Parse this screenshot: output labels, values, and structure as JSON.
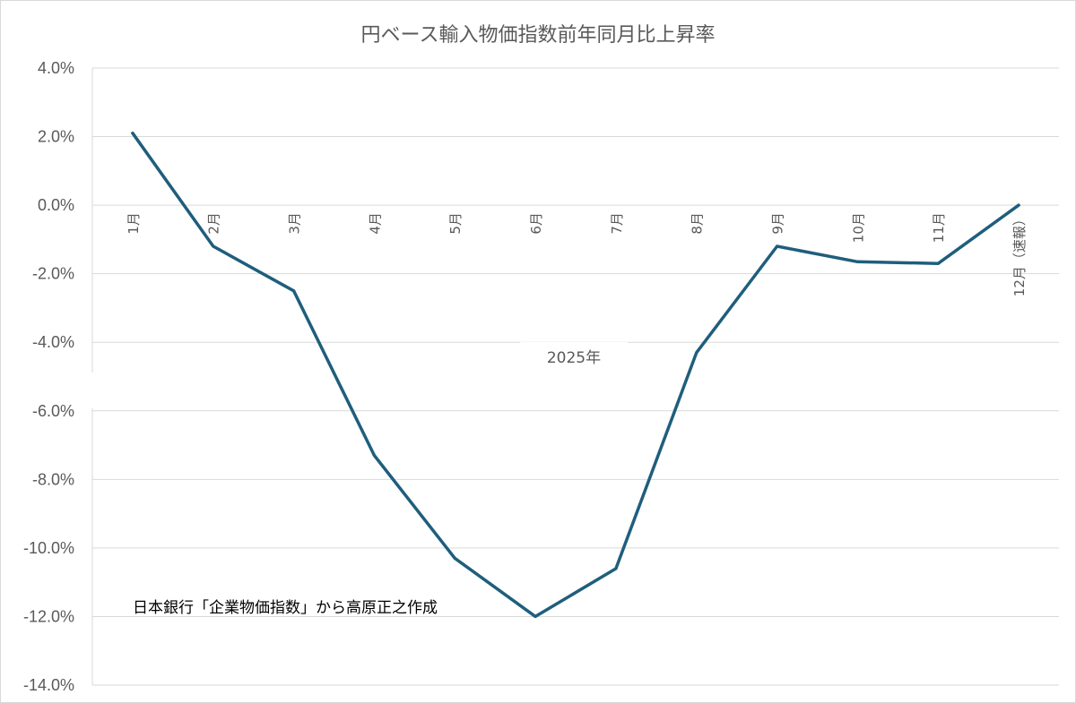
{
  "chart_data": {
    "type": "line",
    "title": "円ベース輸入物価指数前年同月比上昇率",
    "xlabel": "2025年",
    "ylabel": "",
    "categories": [
      "1月",
      "2月",
      "3月",
      "4月",
      "5月",
      "6月",
      "7月",
      "8月",
      "9月",
      "10月",
      "11月",
      "12月（速報）"
    ],
    "series": [
      {
        "values": [
          2.1,
          -1.2,
          -2.5,
          -7.3,
          -10.3,
          -12.0,
          -10.6,
          -4.3,
          -1.2,
          -1.65,
          -1.7,
          0.0
        ],
        "color": "#1f5e7c"
      }
    ],
    "ylim": [
      -14.0,
      4.0
    ],
    "yticks": [
      "4.0%",
      "2.0%",
      "0.0%",
      "-2.0%",
      "-4.0%",
      "-6.0%",
      "-8.0%",
      "-10.0%",
      "-12.0%",
      "-14.0%"
    ],
    "grid": true,
    "annotation": "日本銀行「企業物価指数」から高原正之作成",
    "colors": {
      "line": "#1f5e7c",
      "grid": "#d9d9d9",
      "text": "#595959"
    }
  }
}
